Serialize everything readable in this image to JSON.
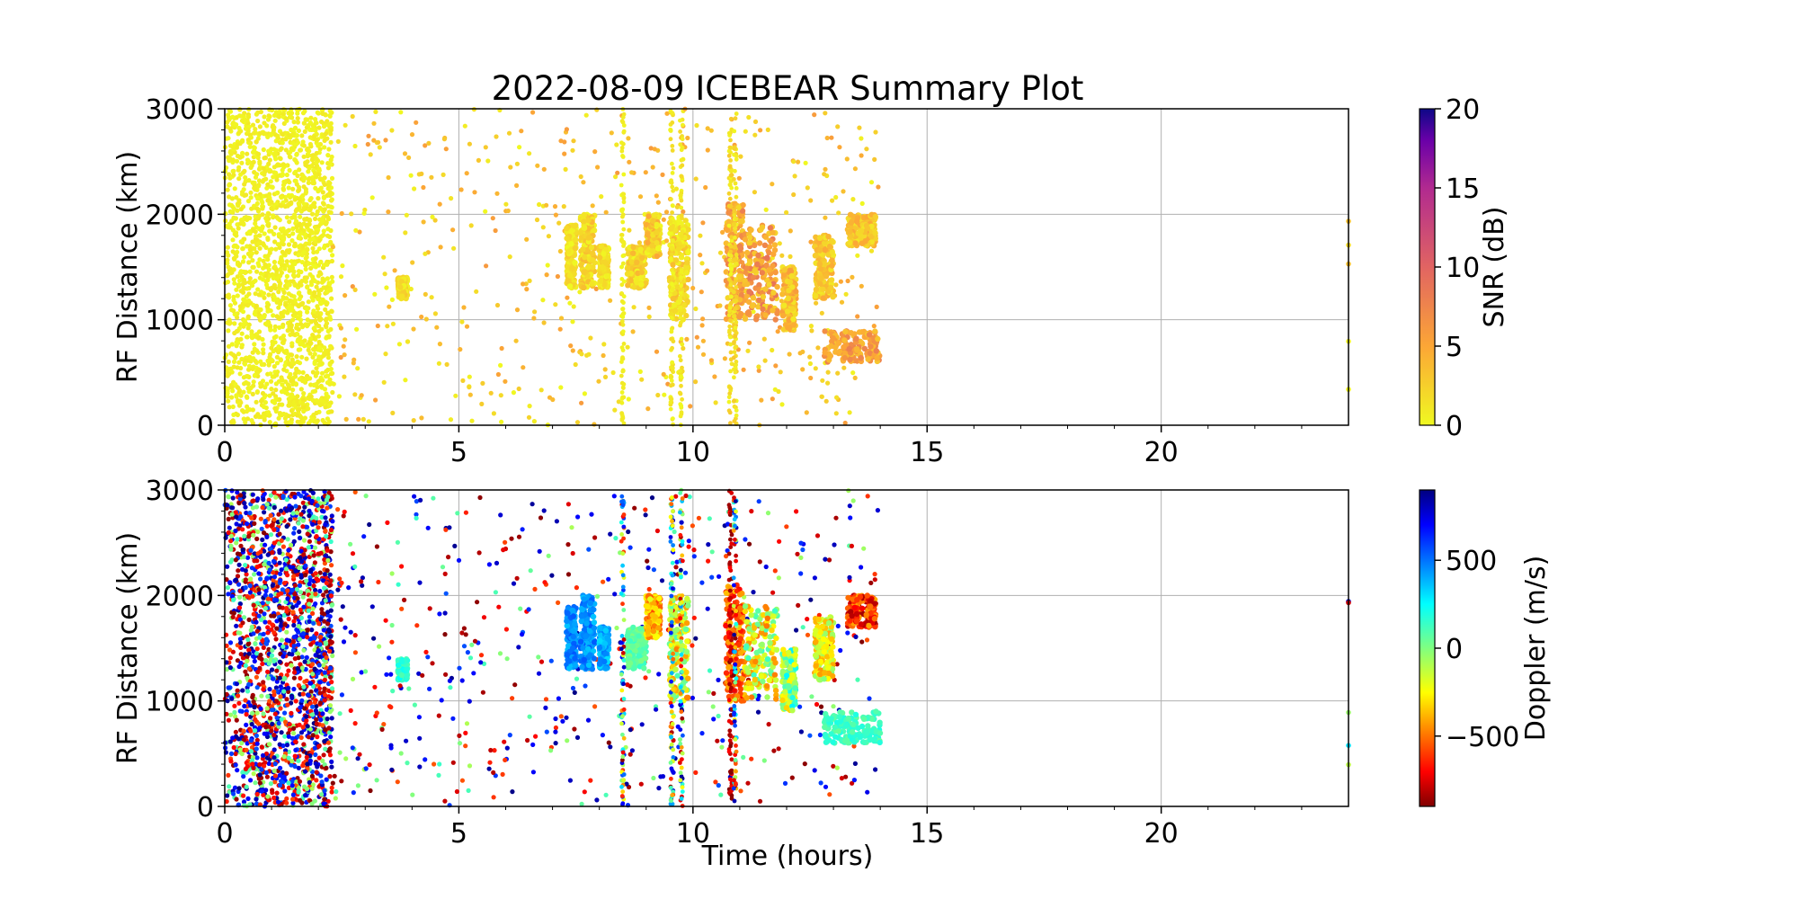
{
  "chart_data": [
    {
      "type": "scatter",
      "title": "2022-08-09 ICEBEAR Summary Plot",
      "xlabel": "",
      "ylabel": "RF Distance (km)",
      "xlim": [
        0,
        24
      ],
      "ylim": [
        0,
        3000
      ],
      "xticks": [
        "0",
        "5",
        "10",
        "15",
        "20"
      ],
      "yticks": [
        "0",
        "1000",
        "2000",
        "3000"
      ],
      "grid": true,
      "colorbar": {
        "label": "SNR (dB)",
        "range": [
          0,
          20
        ],
        "ticks": [
          "0",
          "5",
          "10",
          "15",
          "20"
        ],
        "colormap": "plasma_r"
      },
      "clusters": [
        {
          "t": [
            0,
            2.3
          ],
          "r": [
            0,
            3000
          ],
          "kind": "background",
          "density": "high",
          "snr": [
            0,
            1
          ]
        },
        {
          "t": [
            2.3,
            14
          ],
          "r": [
            0,
            3000
          ],
          "kind": "background",
          "density": "low",
          "snr": [
            0,
            6
          ]
        },
        {
          "t": [
            3.7,
            3.9
          ],
          "r": [
            1200,
            1400
          ],
          "kind": "echo",
          "snr": [
            0,
            3
          ]
        },
        {
          "t": [
            7.3,
            7.5
          ],
          "r": [
            1300,
            1900
          ],
          "kind": "echo",
          "snr": [
            0,
            3
          ]
        },
        {
          "t": [
            7.6,
            7.9
          ],
          "r": [
            1300,
            2000
          ],
          "kind": "echo",
          "snr": [
            0,
            4
          ]
        },
        {
          "t": [
            8.0,
            8.2
          ],
          "r": [
            1300,
            1700
          ],
          "kind": "echo",
          "snr": [
            0,
            3
          ]
        },
        {
          "t": [
            8.6,
            9.0
          ],
          "r": [
            1300,
            1700
          ],
          "kind": "echo",
          "snr": [
            0,
            4
          ]
        },
        {
          "t": [
            9.0,
            9.3
          ],
          "r": [
            1600,
            2000
          ],
          "kind": "echo",
          "snr": [
            0,
            5
          ]
        },
        {
          "t": [
            9.5,
            9.9
          ],
          "r": [
            1000,
            2000
          ],
          "kind": "echo",
          "snr": [
            0,
            4
          ]
        },
        {
          "t": [
            10.7,
            11.1
          ],
          "r": [
            1000,
            2100
          ],
          "kind": "echo",
          "snr": [
            2,
            8
          ]
        },
        {
          "t": [
            11.1,
            11.8
          ],
          "r": [
            1000,
            1900
          ],
          "kind": "echo",
          "snr": [
            2,
            9
          ]
        },
        {
          "t": [
            11.9,
            12.2
          ],
          "r": [
            900,
            1500
          ],
          "kind": "echo",
          "snr": [
            1,
            6
          ]
        },
        {
          "t": [
            12.6,
            13.0
          ],
          "r": [
            1200,
            1800
          ],
          "kind": "echo",
          "snr": [
            1,
            5
          ]
        },
        {
          "t": [
            13.3,
            13.9
          ],
          "r": [
            1700,
            2000
          ],
          "kind": "echo",
          "snr": [
            1,
            5
          ]
        },
        {
          "t": [
            12.8,
            14
          ],
          "r": [
            600,
            900
          ],
          "kind": "echo",
          "snr": [
            3,
            8
          ]
        },
        {
          "t": [
            8.5,
            8.5
          ],
          "r": [
            0,
            3000
          ],
          "kind": "stripe",
          "snr": [
            0,
            1
          ]
        },
        {
          "t": [
            9.55,
            9.55
          ],
          "r": [
            0,
            3000
          ],
          "kind": "stripe",
          "snr": [
            0,
            2
          ]
        },
        {
          "t": [
            9.75,
            9.75
          ],
          "r": [
            0,
            3000
          ],
          "kind": "stripe",
          "snr": [
            0,
            2
          ]
        },
        {
          "t": [
            10.8,
            10.8
          ],
          "r": [
            0,
            3000
          ],
          "kind": "stripe",
          "snr": [
            0,
            3
          ]
        },
        {
          "t": [
            10.9,
            10.9
          ],
          "r": [
            0,
            3000
          ],
          "kind": "stripe",
          "snr": [
            0,
            3
          ]
        },
        {
          "t": [
            24,
            24
          ],
          "r": [
            300,
            2000
          ],
          "kind": "edge",
          "snr": [
            0,
            5
          ]
        }
      ]
    },
    {
      "type": "scatter",
      "title": "",
      "xlabel": "Time (hours)",
      "ylabel": "RF Distance (km)",
      "xlim": [
        0,
        24
      ],
      "ylim": [
        0,
        3000
      ],
      "xticks": [
        "0",
        "5",
        "10",
        "15",
        "20"
      ],
      "yticks": [
        "0",
        "1000",
        "2000",
        "3000"
      ],
      "grid": true,
      "colorbar": {
        "label": "Doppler (m/s)",
        "range": [
          -900,
          900
        ],
        "ticks": [
          "500",
          "0",
          "−500"
        ],
        "tick_values": [
          500,
          0,
          -500
        ],
        "colormap": "jet_r"
      },
      "clusters": [
        {
          "t": [
            0,
            2.3
          ],
          "r": [
            0,
            3000
          ],
          "kind": "background",
          "density": "high",
          "dop": [
            -900,
            900
          ]
        },
        {
          "t": [
            2.3,
            14
          ],
          "r": [
            0,
            3000
          ],
          "kind": "background",
          "density": "low",
          "dop": [
            -900,
            900
          ]
        },
        {
          "t": [
            3.7,
            3.9
          ],
          "r": [
            1200,
            1400
          ],
          "kind": "echo",
          "dop": [
            50,
            250
          ]
        },
        {
          "t": [
            7.3,
            7.5
          ],
          "r": [
            1300,
            1900
          ],
          "kind": "echo",
          "dop": [
            350,
            550
          ]
        },
        {
          "t": [
            7.6,
            7.9
          ],
          "r": [
            1300,
            2000
          ],
          "kind": "echo",
          "dop": [
            350,
            550
          ]
        },
        {
          "t": [
            8.0,
            8.2
          ],
          "r": [
            1300,
            1700
          ],
          "kind": "echo",
          "dop": [
            300,
            500
          ]
        },
        {
          "t": [
            8.6,
            9.0
          ],
          "r": [
            1300,
            1700
          ],
          "kind": "echo",
          "dop": [
            0,
            150
          ]
        },
        {
          "t": [
            9.0,
            9.3
          ],
          "r": [
            1600,
            2000
          ],
          "kind": "echo",
          "dop": [
            -600,
            -200
          ]
        },
        {
          "t": [
            9.5,
            9.9
          ],
          "r": [
            1000,
            2000
          ],
          "kind": "echo",
          "dop": [
            -500,
            100
          ]
        },
        {
          "t": [
            10.7,
            11.1
          ],
          "r": [
            1000,
            2100
          ],
          "kind": "echo",
          "dop": [
            -700,
            -350
          ]
        },
        {
          "t": [
            11.1,
            11.8
          ],
          "r": [
            1000,
            1900
          ],
          "kind": "echo",
          "dop": [
            -500,
            150
          ]
        },
        {
          "t": [
            11.9,
            12.2
          ],
          "r": [
            900,
            1500
          ],
          "kind": "echo",
          "dop": [
            -350,
            300
          ]
        },
        {
          "t": [
            12.6,
            13.0
          ],
          "r": [
            1200,
            1800
          ],
          "kind": "echo",
          "dop": [
            -450,
            0
          ]
        },
        {
          "t": [
            13.3,
            13.9
          ],
          "r": [
            1700,
            2000
          ],
          "kind": "echo",
          "dop": [
            -850,
            -400
          ]
        },
        {
          "t": [
            12.8,
            14
          ],
          "r": [
            600,
            900
          ],
          "kind": "echo",
          "dop": [
            50,
            200
          ]
        },
        {
          "t": [
            8.5,
            8.5
          ],
          "r": [
            0,
            3000
          ],
          "kind": "stripe",
          "dop": [
            -900,
            900
          ]
        },
        {
          "t": [
            9.55,
            9.55
          ],
          "r": [
            0,
            3000
          ],
          "kind": "stripe",
          "dop": [
            -900,
            900
          ]
        },
        {
          "t": [
            9.75,
            9.75
          ],
          "r": [
            0,
            3000
          ],
          "kind": "stripe",
          "dop": [
            -900,
            900
          ]
        },
        {
          "t": [
            10.8,
            10.8
          ],
          "r": [
            0,
            3000
          ],
          "kind": "stripe",
          "dop": [
            -900,
            -700
          ]
        },
        {
          "t": [
            10.9,
            10.9
          ],
          "r": [
            0,
            3000
          ],
          "kind": "stripe",
          "dop": [
            -900,
            900
          ]
        },
        {
          "t": [
            24,
            24
          ],
          "r": [
            300,
            2000
          ],
          "kind": "edge",
          "dop": [
            -900,
            900
          ]
        }
      ]
    }
  ]
}
